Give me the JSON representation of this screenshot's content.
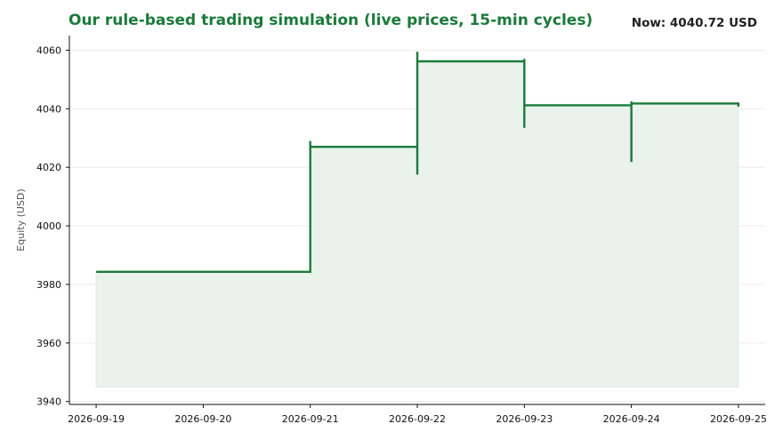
{
  "header": {
    "title": "Our rule-based trading simulation (live prices, 15-min cycles)",
    "now_text": "Now: 4040.72 USD"
  },
  "colors": {
    "accent": "#1b7a3a",
    "fill": "#e9f3ec",
    "grid": "#ececec",
    "axis": "#111111"
  },
  "chart_data": {
    "type": "line",
    "step": true,
    "title": "Our rule-based trading simulation (live prices, 15-min cycles)",
    "ylabel": "Equity (USD)",
    "xlabel": "",
    "xlim": [
      "2026-09-18T18:00",
      "2026-09-25T06:00"
    ],
    "ylim": [
      3939,
      4065
    ],
    "x_ticks": [
      "2026-09-19",
      "2026-09-20",
      "2026-09-21",
      "2026-09-22",
      "2026-09-23",
      "2026-09-24",
      "2026-09-25"
    ],
    "y_ticks": [
      3940,
      3960,
      3980,
      4000,
      4020,
      4040,
      4060
    ],
    "grid": "horizontal",
    "fill_baseline": 3945,
    "series": [
      {
        "points": [
          {
            "x": "2026-09-19",
            "y": 3984.3
          },
          {
            "x": "2026-09-21",
            "y": 3984.3
          },
          {
            "x": "2026-09-21",
            "y": 4029.0
          },
          {
            "x": "2026-09-21",
            "y": 4027.0
          },
          {
            "x": "2026-09-22",
            "y": 4027.0
          },
          {
            "x": "2026-09-22",
            "y": 4017.5
          },
          {
            "x": "2026-09-22",
            "y": 4059.5
          },
          {
            "x": "2026-09-22",
            "y": 4056.2
          },
          {
            "x": "2026-09-23",
            "y": 4056.2
          },
          {
            "x": "2026-09-23",
            "y": 4057.0
          },
          {
            "x": "2026-09-23",
            "y": 4033.5
          },
          {
            "x": "2026-09-23",
            "y": 4041.2
          },
          {
            "x": "2026-09-24",
            "y": 4041.2
          },
          {
            "x": "2026-09-24",
            "y": 4021.8
          },
          {
            "x": "2026-09-24",
            "y": 4042.5
          },
          {
            "x": "2026-09-24",
            "y": 4041.8
          },
          {
            "x": "2026-09-25",
            "y": 4041.8
          },
          {
            "x": "2026-09-25",
            "y": 4040.72
          }
        ]
      }
    ]
  }
}
